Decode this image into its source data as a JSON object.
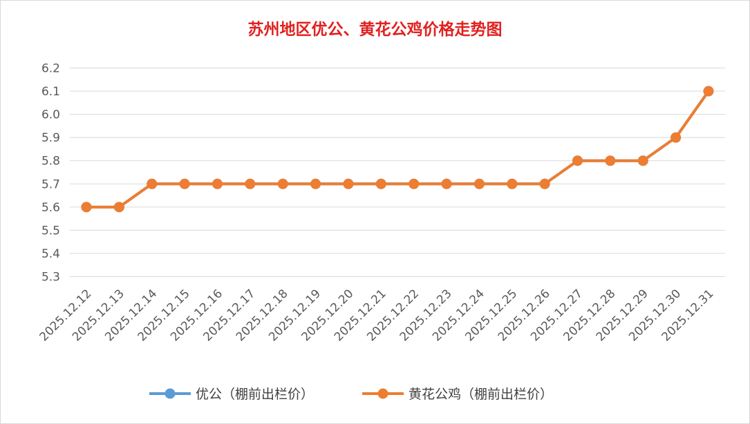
{
  "chart_data": {
    "type": "line",
    "title": "苏州地区优公、黄花公鸡价格走势图",
    "xlabel": "",
    "ylabel": "",
    "categories": [
      "2025.12.12",
      "2025.12.13",
      "2025.12.14",
      "2025.12.15",
      "2025.12.16",
      "2025.12.17",
      "2025.12.18",
      "2025.12.19",
      "2025.12.20",
      "2025.12.21",
      "2025.12.22",
      "2025.12.23",
      "2025.12.24",
      "2025.12.25",
      "2025.12.26",
      "2025.12.27",
      "2025.12.28",
      "2025.12.29",
      "2025.12.30",
      "2025.12.31"
    ],
    "yticks": [
      "5.3",
      "5.4",
      "5.5",
      "5.6",
      "5.7",
      "5.8",
      "5.9",
      "6.0",
      "6.1",
      "6.2"
    ],
    "ylim": [
      5.3,
      6.2
    ],
    "grid": true,
    "legend_position": "bottom",
    "series": [
      {
        "name": "优公（棚前出栏价）",
        "color": "#5b9bd5",
        "values": [
          5.6,
          5.6,
          5.7,
          5.7,
          5.7,
          5.7,
          5.7,
          5.7,
          5.7,
          5.7,
          5.7,
          5.7,
          5.7,
          5.7,
          5.7,
          5.8,
          5.8,
          5.8,
          5.9,
          6.1
        ]
      },
      {
        "name": "黄花公鸡（棚前出栏价）",
        "color": "#ed7d31",
        "values": [
          5.6,
          5.6,
          5.7,
          5.7,
          5.7,
          5.7,
          5.7,
          5.7,
          5.7,
          5.7,
          5.7,
          5.7,
          5.7,
          5.7,
          5.7,
          5.8,
          5.8,
          5.8,
          5.9,
          6.1
        ]
      }
    ]
  }
}
